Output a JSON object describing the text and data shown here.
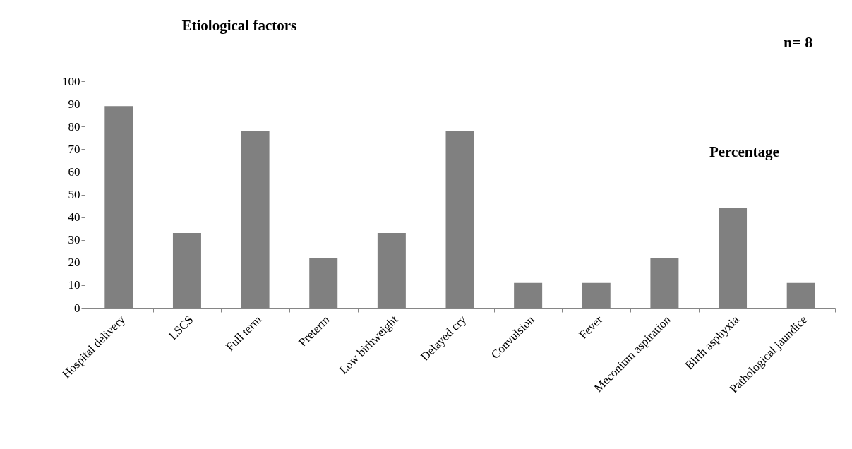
{
  "chart_data": {
    "type": "bar",
    "title": "Etiological factors",
    "annotations": [
      "n= 8",
      "Percentage"
    ],
    "categories": [
      "Hospital delivery",
      "LSCS",
      "Full term",
      "Preterm",
      "Low birhweight",
      "Delayed cry",
      "Convulsion",
      "Fever",
      "Meconium aspiration",
      "Birth asphyxia",
      "Pathological jaundice"
    ],
    "values": [
      89,
      33,
      78,
      22,
      33,
      78,
      11,
      11,
      22,
      44,
      11
    ],
    "color": "#808080",
    "ylim": [
      0,
      100
    ],
    "yticks": [
      0,
      10,
      20,
      30,
      40,
      50,
      60,
      70,
      80,
      90,
      100
    ],
    "grid": false
  }
}
